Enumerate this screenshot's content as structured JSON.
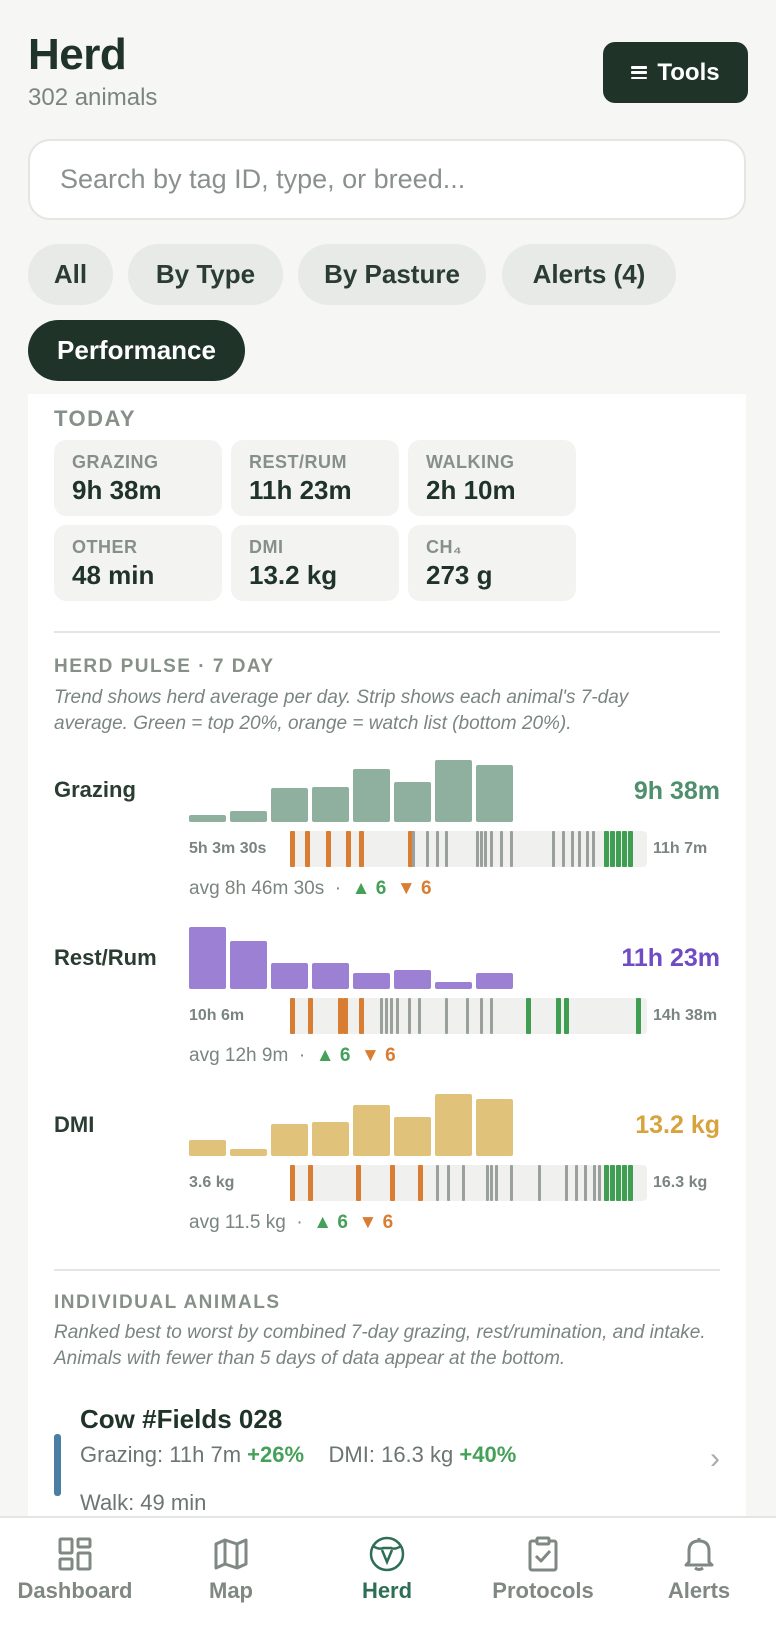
{
  "header": {
    "title": "Herd",
    "subtitle": "302 animals",
    "tools_label": "Tools"
  },
  "search": {
    "placeholder": "Search by tag ID, type, or breed..."
  },
  "filters": [
    {
      "label": "All",
      "active": false
    },
    {
      "label": "By Type",
      "active": false
    },
    {
      "label": "By Pasture",
      "active": false
    },
    {
      "label": "Alerts (4)",
      "active": false
    },
    {
      "label": "Performance",
      "active": true
    }
  ],
  "today": {
    "label": "TODAY",
    "stats": [
      {
        "label": "GRAZING",
        "value": "9h 38m"
      },
      {
        "label": "REST/RUM",
        "value": "11h 23m"
      },
      {
        "label": "WALKING",
        "value": "2h 10m"
      },
      {
        "label": "OTHER",
        "value": "48 min"
      },
      {
        "label": "DMI",
        "value": "13.2 kg"
      },
      {
        "label": "CH₄",
        "value": "273 g"
      }
    ]
  },
  "pulse": {
    "label": "HERD PULSE · 7 DAY",
    "note": "Trend shows herd average per day. Strip shows each animal's 7-day average. Green = top 20%, orange = watch list (bottom 20%).",
    "metrics": [
      {
        "name": "Grazing",
        "value": "9h 38m",
        "color": "#8fb09e",
        "value_color": "#4f8f6e",
        "trend": [
          0.12,
          0.17,
          0.55,
          0.56,
          0.85,
          0.65,
          1.0,
          0.92
        ],
        "min": "5h 3m 30s",
        "max": "11h 7m",
        "avg": "avg 8h 46m 30s",
        "up": "6",
        "down": "6"
      },
      {
        "name": "Rest/Rum",
        "value": "11h 23m",
        "color": "#9b80d3",
        "value_color": "#6f4bc4",
        "trend": [
          1.0,
          0.78,
          0.42,
          0.42,
          0.26,
          0.3,
          0.11,
          0.25
        ],
        "min": "10h 6m",
        "max": "14h 38m",
        "avg": "avg 12h 9m",
        "up": "6",
        "down": "6"
      },
      {
        "name": "DMI",
        "value": "13.2 kg",
        "color": "#e1c27a",
        "value_color": "#d6a33d",
        "trend": [
          0.25,
          0.11,
          0.52,
          0.55,
          0.83,
          0.63,
          1.0,
          0.92
        ],
        "min": "3.6 kg",
        "max": "16.3 kg",
        "avg": "avg 11.5 kg",
        "up": "6",
        "down": "6"
      }
    ]
  },
  "individual": {
    "label": "INDIVIDUAL ANIMALS",
    "note": "Ranked best to worst by combined 7-day grazing, rest/rumination, and intake. Animals with fewer than 5 days of data appear at the bottom.",
    "animal": {
      "name": "Cow #Fields 028",
      "grazing_label": "Grazing:",
      "grazing_value": "11h 7m",
      "grazing_change": "+26%",
      "dmi_label": "DMI:",
      "dmi_value": "16.3 kg",
      "dmi_change": "+40%",
      "walk": "Walk: 49 min"
    }
  },
  "tabs": [
    {
      "label": "Dashboard",
      "icon": "dashboard-icon"
    },
    {
      "label": "Map",
      "icon": "map-icon"
    },
    {
      "label": "Herd",
      "icon": "cow-icon",
      "active": true
    },
    {
      "label": "Protocols",
      "icon": "clipboard-icon"
    },
    {
      "label": "Alerts",
      "icon": "bell-icon"
    }
  ]
}
